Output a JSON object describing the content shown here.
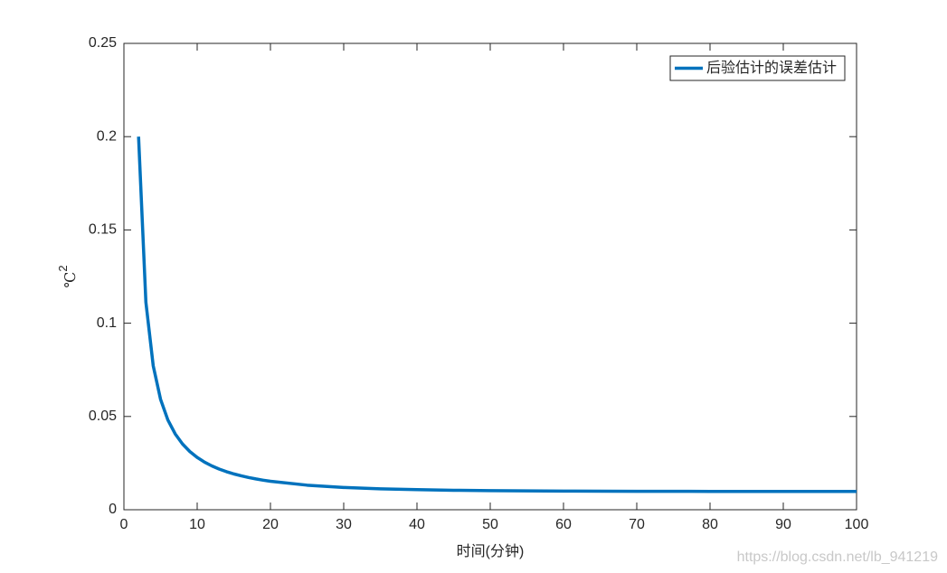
{
  "chart_data": {
    "type": "line",
    "xlabel": "时间(分钟)",
    "ylabel": {
      "base": "℃",
      "sup": "2"
    },
    "x": [
      2,
      3,
      4,
      5,
      6,
      7,
      8,
      9,
      10,
      11,
      12,
      13,
      14,
      15,
      16,
      17,
      18,
      19,
      20,
      25,
      30,
      35,
      40,
      45,
      50,
      60,
      70,
      80,
      90,
      100
    ],
    "series": [
      {
        "name": "后验估计的误差估计",
        "color": "#0072bd",
        "values": [
          0.2,
          0.1112,
          0.07716,
          0.0592,
          0.04813,
          0.04064,
          0.03525,
          0.0312,
          0.02805,
          0.02554,
          0.0235,
          0.02181,
          0.0204,
          0.0192,
          0.01818,
          0.01729,
          0.01652,
          0.01585,
          0.01526,
          0.01317,
          0.01194,
          0.01123,
          0.01076,
          0.01044,
          0.01023,
          0.00999,
          0.00989,
          0.00984,
          0.00982,
          0.0098
        ]
      }
    ],
    "xlim": [
      0,
      100
    ],
    "xticks": [
      0,
      10,
      20,
      30,
      40,
      50,
      60,
      70,
      80,
      90,
      100
    ],
    "ylim": [
      0,
      0.25
    ],
    "yticks": [
      0,
      0.05,
      0.1,
      0.15,
      0.2,
      0.25
    ],
    "legend": "upper right",
    "watermark": "https://blog.csdn.net/lb_941219"
  }
}
